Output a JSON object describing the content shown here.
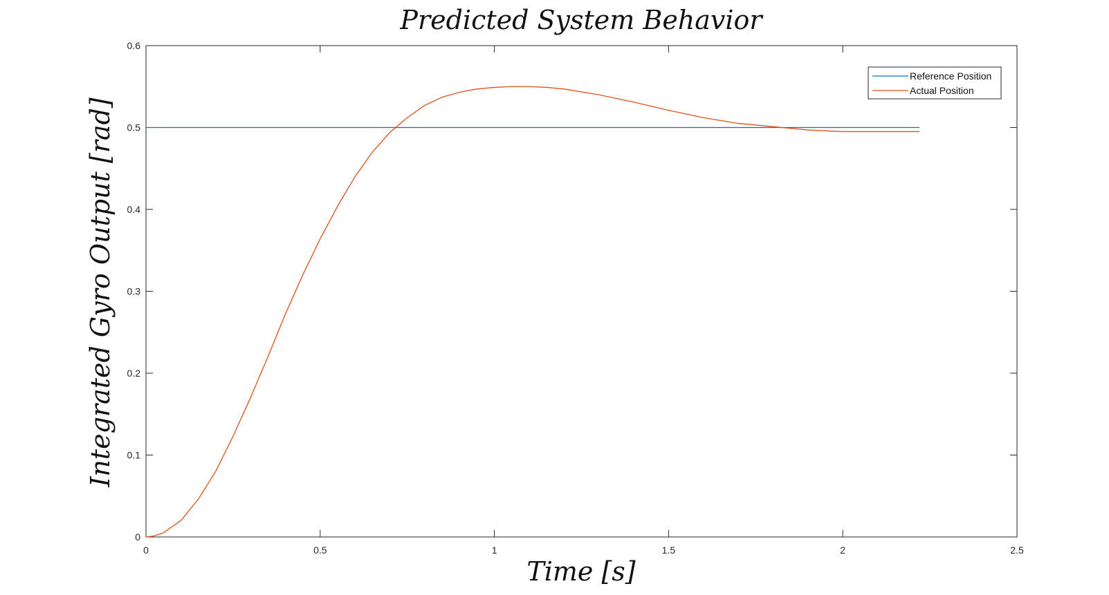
{
  "chart_data": {
    "type": "line",
    "title": "Predicted System Behavior",
    "xlabel": "Time [s]",
    "ylabel": "Integrated Gyro Output [rad]",
    "xlim": [
      0,
      2.5
    ],
    "ylim": [
      0,
      0.6
    ],
    "xticks": [
      0,
      0.5,
      1,
      1.5,
      2,
      2.5
    ],
    "xtick_labels": [
      "0",
      "0.5",
      "1",
      "1.5",
      "2",
      "2.5"
    ],
    "yticks": [
      0,
      0.1,
      0.2,
      0.3,
      0.4,
      0.5,
      0.6
    ],
    "ytick_labels": [
      "0",
      "0.1",
      "0.2",
      "0.3",
      "0.4",
      "0.5",
      "0.6"
    ],
    "grid": false,
    "legend_position": "top-right",
    "series": [
      {
        "name": "Reference Position",
        "color": "#0072BD",
        "x": [
          0,
          2.22
        ],
        "y": [
          0.5,
          0.5
        ]
      },
      {
        "name": "Actual Position",
        "color": "#D95319",
        "x": [
          0,
          0.02,
          0.05,
          0.1,
          0.15,
          0.2,
          0.25,
          0.3,
          0.35,
          0.4,
          0.45,
          0.5,
          0.55,
          0.6,
          0.65,
          0.7,
          0.75,
          0.8,
          0.85,
          0.9,
          0.95,
          1.0,
          1.05,
          1.1,
          1.15,
          1.2,
          1.3,
          1.4,
          1.5,
          1.6,
          1.7,
          1.8,
          1.85,
          1.9,
          2.0,
          2.1,
          2.22
        ],
        "y": [
          0,
          0.001,
          0.005,
          0.02,
          0.046,
          0.08,
          0.123,
          0.17,
          0.22,
          0.272,
          0.32,
          0.364,
          0.404,
          0.44,
          0.47,
          0.494,
          0.512,
          0.527,
          0.537,
          0.543,
          0.547,
          0.549,
          0.55,
          0.55,
          0.549,
          0.547,
          0.54,
          0.531,
          0.521,
          0.512,
          0.505,
          0.501,
          0.499,
          0.497,
          0.495,
          0.495,
          0.495
        ]
      }
    ]
  }
}
